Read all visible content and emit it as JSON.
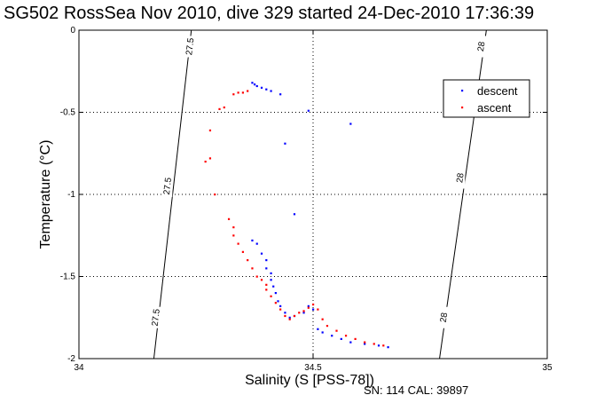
{
  "title": "SG502 RossSea Nov 2010, dive 329 started 24-Dec-2010 17:36:39",
  "footer": "SN: 114  CAL: 39897",
  "chart_data": {
    "type": "scatter",
    "title": "SG502 RossSea Nov 2010, dive 329 started 24-Dec-2010 17:36:39",
    "xlabel": "Salinity (S [PSS-78])",
    "ylabel": "Temperature (°C)",
    "xlim": [
      34,
      35
    ],
    "ylim": [
      -2,
      0
    ],
    "xticks": [
      34,
      34.5,
      35
    ],
    "yticks": [
      0,
      -0.5,
      -1,
      -1.5,
      -2
    ],
    "xtick_labels": [
      "34",
      "34.5",
      "35"
    ],
    "ytick_labels": [
      "0",
      "-0.5",
      "-1",
      "-1.5",
      "-2"
    ],
    "grid": true,
    "legend_position": "top-right",
    "colors": {
      "descent": "#0000ff",
      "ascent": "#ff0000",
      "axis": "#000000"
    },
    "density_contours": [
      {
        "label": "27.5",
        "points": [
          [
            34.24,
            0
          ],
          [
            34.16,
            -2
          ]
        ],
        "label_positions": [
          [
            34.238,
            -0.1
          ],
          [
            34.19,
            -0.95
          ],
          [
            34.165,
            -1.75
          ]
        ]
      },
      {
        "label": "28",
        "points": [
          [
            34.87,
            0
          ],
          [
            34.77,
            -2
          ]
        ],
        "label_positions": [
          [
            34.86,
            -0.1
          ],
          [
            34.815,
            -0.9
          ],
          [
            34.78,
            -1.75
          ]
        ]
      }
    ],
    "series": [
      {
        "name": "descent",
        "color": "#0000ff",
        "points": [
          [
            34.37,
            -0.32
          ],
          [
            34.375,
            -0.33
          ],
          [
            34.38,
            -0.34
          ],
          [
            34.39,
            -0.35
          ],
          [
            34.4,
            -0.36
          ],
          [
            34.41,
            -0.37
          ],
          [
            34.43,
            -0.39
          ],
          [
            34.49,
            -0.49
          ],
          [
            34.58,
            -0.57
          ],
          [
            34.44,
            -0.69
          ],
          [
            34.46,
            -1.12
          ],
          [
            34.37,
            -1.28
          ],
          [
            34.38,
            -1.3
          ],
          [
            34.39,
            -1.36
          ],
          [
            34.4,
            -1.4
          ],
          [
            34.4,
            -1.45
          ],
          [
            34.41,
            -1.48
          ],
          [
            34.41,
            -1.52
          ],
          [
            34.415,
            -1.56
          ],
          [
            34.42,
            -1.6
          ],
          [
            34.425,
            -1.65
          ],
          [
            34.43,
            -1.68
          ],
          [
            34.44,
            -1.72
          ],
          [
            34.45,
            -1.75
          ],
          [
            34.46,
            -1.74
          ],
          [
            34.48,
            -1.72
          ],
          [
            34.5,
            -1.7
          ],
          [
            34.49,
            -1.68
          ],
          [
            34.51,
            -1.82
          ],
          [
            34.52,
            -1.84
          ],
          [
            34.54,
            -1.86
          ],
          [
            34.56,
            -1.88
          ],
          [
            34.58,
            -1.9
          ],
          [
            34.61,
            -1.91
          ],
          [
            34.64,
            -1.92
          ],
          [
            34.66,
            -1.93
          ]
        ]
      },
      {
        "name": "ascent",
        "color": "#ff0000",
        "points": [
          [
            34.33,
            -0.39
          ],
          [
            34.34,
            -0.38
          ],
          [
            34.35,
            -0.38
          ],
          [
            34.36,
            -0.37
          ],
          [
            34.3,
            -0.48
          ],
          [
            34.31,
            -0.47
          ],
          [
            34.28,
            -0.61
          ],
          [
            34.27,
            -0.8
          ],
          [
            34.28,
            -0.78
          ],
          [
            34.29,
            -1.0
          ],
          [
            34.32,
            -1.15
          ],
          [
            34.33,
            -1.2
          ],
          [
            34.33,
            -1.25
          ],
          [
            34.34,
            -1.3
          ],
          [
            34.35,
            -1.35
          ],
          [
            34.36,
            -1.4
          ],
          [
            34.37,
            -1.45
          ],
          [
            34.38,
            -1.5
          ],
          [
            34.39,
            -1.52
          ],
          [
            34.4,
            -1.55
          ],
          [
            34.4,
            -1.58
          ],
          [
            34.41,
            -1.62
          ],
          [
            34.42,
            -1.66
          ],
          [
            34.43,
            -1.7
          ],
          [
            34.44,
            -1.74
          ],
          [
            34.45,
            -1.76
          ],
          [
            34.46,
            -1.74
          ],
          [
            34.47,
            -1.72
          ],
          [
            34.48,
            -1.71
          ],
          [
            34.49,
            -1.69
          ],
          [
            34.5,
            -1.67
          ],
          [
            34.51,
            -1.7
          ],
          [
            34.52,
            -1.76
          ],
          [
            34.53,
            -1.8
          ],
          [
            34.55,
            -1.83
          ],
          [
            34.57,
            -1.86
          ],
          [
            34.59,
            -1.88
          ],
          [
            34.61,
            -1.9
          ],
          [
            34.63,
            -1.91
          ],
          [
            34.65,
            -1.92
          ]
        ]
      }
    ]
  }
}
